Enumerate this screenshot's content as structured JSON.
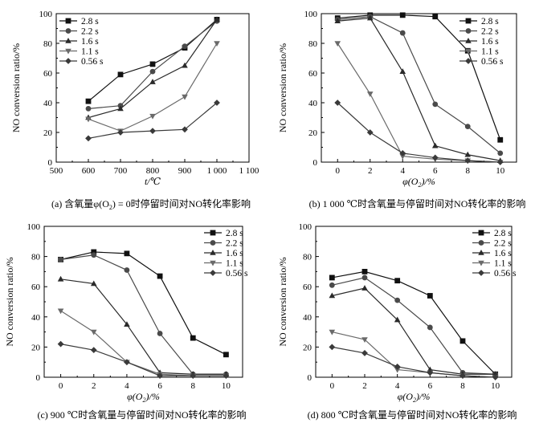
{
  "chart_data": [
    {
      "type": "line",
      "caption": "(a) 含氧量φ(O2) = 0时停留时间对NO转化率影响",
      "xlabel": "t/℃",
      "ylabel": "NO conversion ratio/%",
      "xlim": [
        500,
        1100
      ],
      "ylim": [
        0,
        100
      ],
      "xticks": [
        "500",
        "600",
        "700",
        "800",
        "900",
        "1 000",
        "1 100"
      ],
      "yticks": [
        "0",
        "20",
        "40",
        "60",
        "80",
        "100"
      ],
      "x": [
        600,
        700,
        800,
        900,
        1000
      ],
      "legend": "top-left",
      "series": [
        {
          "name": "2.8 s",
          "values": [
            41,
            59,
            66,
            77,
            96
          ]
        },
        {
          "name": "2.2 s",
          "values": [
            36,
            38,
            61,
            78,
            95
          ]
        },
        {
          "name": "1.6 s",
          "values": [
            30,
            36,
            54,
            65,
            96
          ]
        },
        {
          "name": "1.1 s",
          "values": [
            29,
            21,
            31,
            44,
            80
          ]
        },
        {
          "name": "0.56 s",
          "values": [
            16,
            20,
            21,
            22,
            40
          ]
        }
      ]
    },
    {
      "type": "line",
      "caption": "(b) 1 000 ℃时含氧量与停留时间对NO转化率的影响",
      "xlabel": "φ(O2)/%",
      "ylabel": "NO conversion ratio/%",
      "xlim": [
        -1,
        11
      ],
      "ylim": [
        0,
        100
      ],
      "xticks": [
        "0",
        "2",
        "4",
        "6",
        "8",
        "10"
      ],
      "yticks": [
        "0",
        "20",
        "40",
        "60",
        "80",
        "100"
      ],
      "x": [
        0,
        2,
        4,
        6,
        8,
        10
      ],
      "legend": "top-right",
      "series": [
        {
          "name": "2.8 s",
          "values": [
            97,
            99,
            99,
            98,
            75,
            15
          ]
        },
        {
          "name": "2.2 s",
          "values": [
            96,
            98,
            87,
            39,
            24,
            6
          ]
        },
        {
          "name": "1.6 s",
          "values": [
            95,
            97,
            61,
            11,
            5,
            1
          ]
        },
        {
          "name": "1.1 s",
          "values": [
            80,
            46,
            4,
            2,
            1,
            0
          ]
        },
        {
          "name": "0.56 s",
          "values": [
            40,
            20,
            6,
            3,
            1,
            0
          ]
        }
      ]
    },
    {
      "type": "line",
      "caption": "(c) 900 ℃时含氧量与停留时间对NO转化率的影响",
      "xlabel": "φ(O2)/%",
      "ylabel": "NO conversion ratio/%",
      "xlim": [
        -1,
        11
      ],
      "ylim": [
        0,
        100
      ],
      "xticks": [
        "0",
        "2",
        "4",
        "6",
        "8",
        "10"
      ],
      "yticks": [
        "0",
        "20",
        "40",
        "60",
        "80",
        "100"
      ],
      "x": [
        0,
        2,
        4,
        6,
        8,
        10
      ],
      "legend": "top-right",
      "series": [
        {
          "name": "2.8 s",
          "values": [
            78,
            83,
            82,
            67,
            26,
            15
          ]
        },
        {
          "name": "2.2 s",
          "values": [
            78,
            81,
            71,
            29,
            2,
            2
          ]
        },
        {
          "name": "1.6 s",
          "values": [
            65,
            62,
            35,
            3,
            2,
            2
          ]
        },
        {
          "name": "1.1 s",
          "values": [
            44,
            30,
            10,
            2,
            1,
            1
          ]
        },
        {
          "name": "0.56 s",
          "values": [
            22,
            18,
            10,
            1,
            1,
            1
          ]
        }
      ]
    },
    {
      "type": "line",
      "caption": "(d) 800 ℃时含氧量与停留时间对NO转化率的影响",
      "xlabel": "φ(O2)/%",
      "ylabel": "NO conversion ratio/%",
      "xlim": [
        -1,
        11
      ],
      "ylim": [
        0,
        100
      ],
      "xticks": [
        "0",
        "2",
        "4",
        "6",
        "8",
        "10"
      ],
      "yticks": [
        "0",
        "20",
        "40",
        "60",
        "80",
        "100"
      ],
      "x": [
        0,
        2,
        4,
        6,
        8,
        10
      ],
      "legend": "top-right",
      "series": [
        {
          "name": "2.8 s",
          "values": [
            66,
            70,
            64,
            54,
            24,
            2
          ]
        },
        {
          "name": "2.2 s",
          "values": [
            61,
            66,
            51,
            33,
            3,
            2
          ]
        },
        {
          "name": "1.6 s",
          "values": [
            54,
            59,
            38,
            5,
            2,
            2
          ]
        },
        {
          "name": "1.1 s",
          "values": [
            30,
            25,
            5,
            3,
            1,
            0
          ]
        },
        {
          "name": "0.56 s",
          "values": [
            20,
            16,
            7,
            3,
            1,
            0
          ]
        }
      ]
    }
  ],
  "style": {
    "series_colors": [
      "#111111",
      "#4a4a4a",
      "#2a2a2a",
      "#6a6a6a",
      "#3a3a3a"
    ],
    "series_markers": [
      "square",
      "circle",
      "triangle-up",
      "triangle-down",
      "diamond"
    ],
    "axis_color": "#000000",
    "background": "#ffffff"
  }
}
